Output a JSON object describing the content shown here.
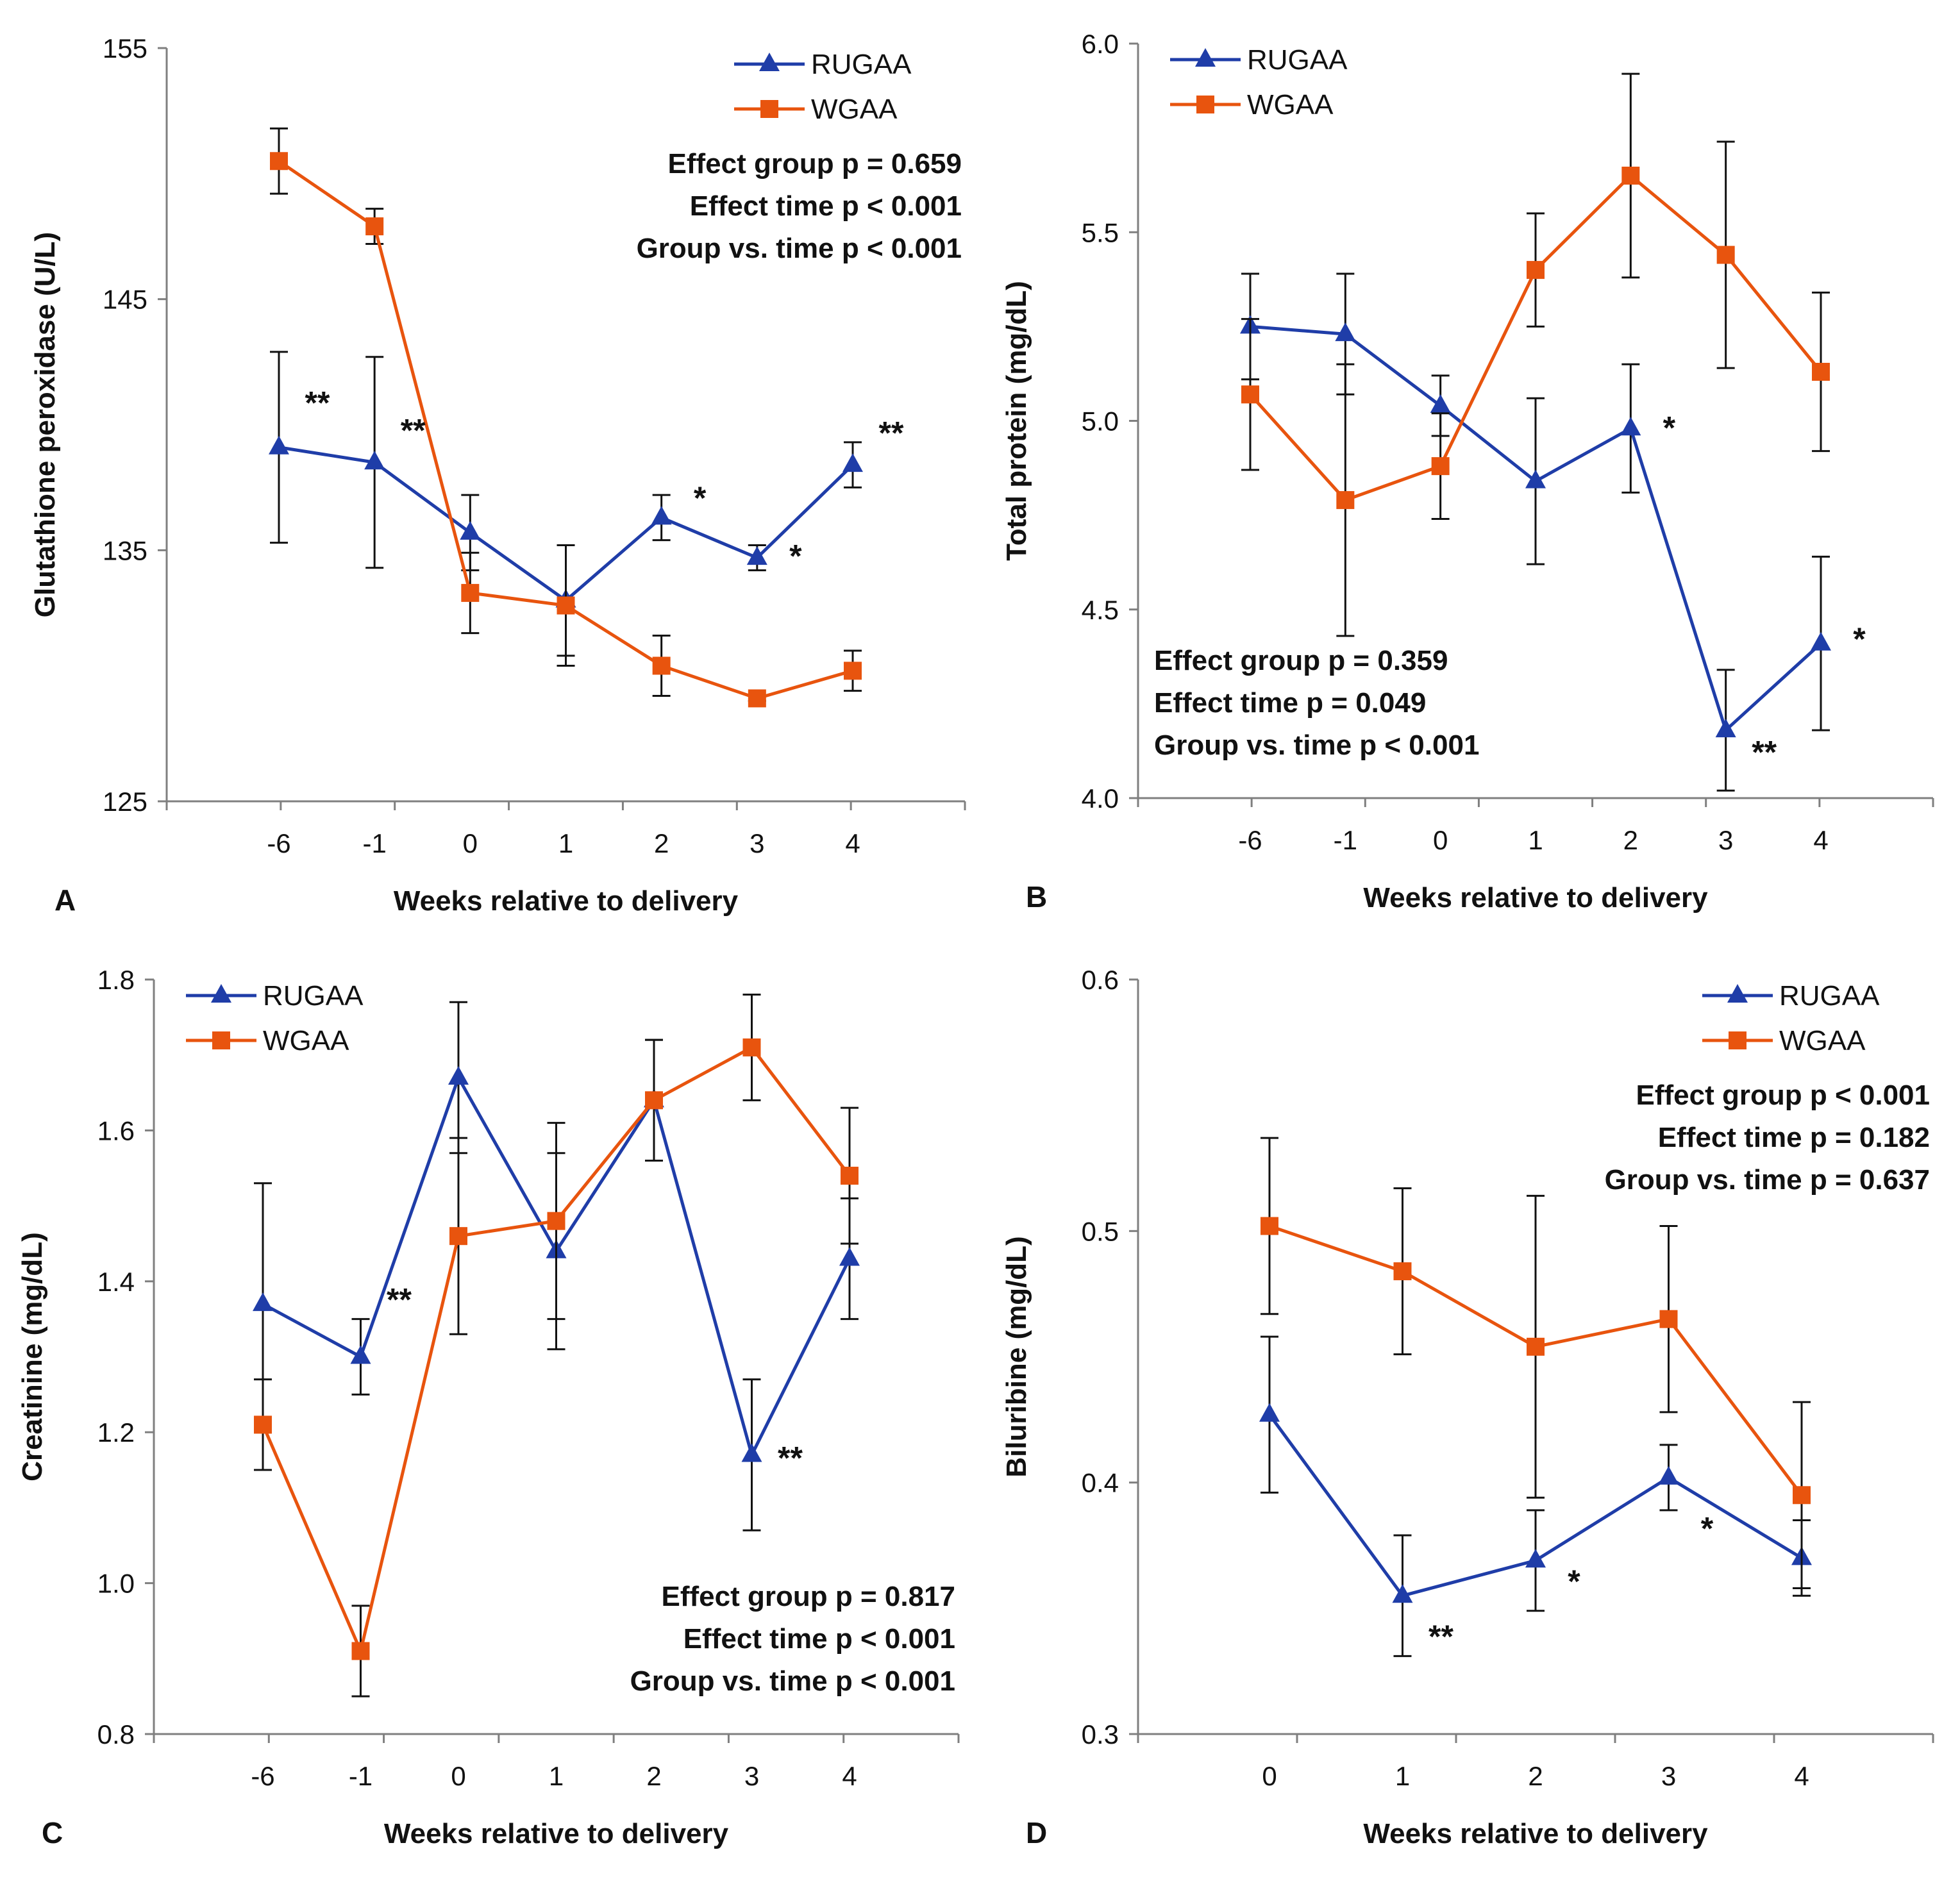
{
  "colors": {
    "rugaa": "#1f3da8",
    "wgaa": "#e8540e",
    "axis": "#7f7f7f",
    "text": "#111111",
    "errorbar": "#111111"
  },
  "chart_data": [
    {
      "panel": "A",
      "type": "line",
      "xlabel": "Weeks relative to delivery",
      "ylabel": "Glutathione peroxidase (U/L)",
      "categories": [
        "-6",
        "-1",
        "0",
        "1",
        "2",
        "3",
        "4"
      ],
      "ylim": [
        125,
        155
      ],
      "yticks": [
        "125",
        "135",
        "145",
        "155"
      ],
      "legend_position": "top-right",
      "series": [
        {
          "name": "RUGAA",
          "marker": "triangle",
          "values": [
            139.1,
            138.5,
            135.7,
            133.0,
            136.3,
            134.7,
            138.4
          ],
          "errors": [
            3.8,
            4.2,
            1.5,
            2.2,
            0.9,
            0.5,
            0.9
          ]
        },
        {
          "name": "WGAA",
          "marker": "square",
          "values": [
            150.5,
            147.9,
            133.3,
            132.8,
            130.4,
            129.1,
            130.2
          ],
          "errors": [
            1.3,
            0.7,
            1.6,
            2.4,
            1.2,
            0.1,
            0.8
          ]
        }
      ],
      "annotations": [
        {
          "text": "**",
          "x": "-6",
          "y": 141.0
        },
        {
          "text": "**",
          "x": "-1",
          "y": 139.9
        },
        {
          "text": "*",
          "x": "2",
          "y": 137.2
        },
        {
          "text": "*",
          "x": "3",
          "y": 134.9
        },
        {
          "text": "**",
          "x": "4",
          "y": 139.8
        }
      ],
      "stats": [
        "Effect group p = 0.659",
        "Effect time p < 0.001",
        "Group vs. time p < 0.001"
      ],
      "stats_position": "top-right"
    },
    {
      "panel": "B",
      "type": "line",
      "xlabel": "Weeks relative to delivery",
      "ylabel": "Total protein (mg/dL)",
      "categories": [
        "-6",
        "-1",
        "0",
        "1",
        "2",
        "3",
        "4"
      ],
      "ylim": [
        4.0,
        6.0
      ],
      "yticks": [
        "4.0",
        "4.5",
        "5.0",
        "5.5",
        "6.0"
      ],
      "legend_position": "top-left",
      "series": [
        {
          "name": "RUGAA",
          "marker": "triangle",
          "values": [
            5.25,
            5.23,
            5.04,
            4.84,
            4.98,
            4.18,
            4.41
          ],
          "errors": [
            0.14,
            0.16,
            0.08,
            0.22,
            0.17,
            0.16,
            0.23
          ]
        },
        {
          "name": "WGAA",
          "marker": "square",
          "values": [
            5.07,
            4.79,
            4.88,
            5.4,
            5.65,
            5.44,
            5.13
          ],
          "errors": [
            0.2,
            0.36,
            0.14,
            0.15,
            0.27,
            0.3,
            0.21
          ]
        }
      ],
      "annotations": [
        {
          "text": "*",
          "x": "2",
          "y": 4.99
        },
        {
          "text": "**",
          "x": "3",
          "y": 4.13
        },
        {
          "text": "*",
          "x": "4",
          "y": 4.43
        }
      ],
      "stats": [
        "Effect group p = 0.359",
        "Effect time p = 0.049",
        "Group vs. time p < 0.001"
      ],
      "stats_position": "bottom-left"
    },
    {
      "panel": "C",
      "type": "line",
      "xlabel": "Weeks relative to delivery",
      "ylabel": "Creatinine (mg/dL)",
      "categories": [
        "-6",
        "-1",
        "0",
        "1",
        "2",
        "3",
        "4"
      ],
      "ylim": [
        0.8,
        1.8
      ],
      "yticks": [
        "0.8",
        "1.0",
        "1.2",
        "1.4",
        "1.6",
        "1.8"
      ],
      "legend_position": "top-left",
      "series": [
        {
          "name": "RUGAA",
          "marker": "triangle",
          "values": [
            1.37,
            1.3,
            1.67,
            1.44,
            1.64,
            1.17,
            1.43
          ],
          "errors": [
            0.16,
            0.05,
            0.1,
            0.13,
            0.08,
            0.1,
            0.08
          ]
        },
        {
          "name": "WGAA",
          "marker": "square",
          "values": [
            1.21,
            0.91,
            1.46,
            1.48,
            1.64,
            1.71,
            1.54
          ],
          "errors": [
            0.06,
            0.06,
            0.13,
            0.13,
            0.08,
            0.07,
            0.09
          ]
        }
      ],
      "annotations": [
        {
          "text": "**",
          "x": "-1",
          "y": 1.38
        },
        {
          "text": "**",
          "x": "3",
          "y": 1.17
        }
      ],
      "stats": [
        "Effect group p = 0.817",
        "Effect time p < 0.001",
        "Group vs. time p < 0.001"
      ],
      "stats_position": "bottom-right"
    },
    {
      "panel": "D",
      "type": "line",
      "xlabel": "Weeks relative to delivery",
      "ylabel": "Biluribine (mg/dL)",
      "categories": [
        "0",
        "1",
        "2",
        "3",
        "4"
      ],
      "ylim": [
        0.3,
        0.6
      ],
      "yticks": [
        "0.3",
        "0.4",
        "0.5",
        "0.6"
      ],
      "legend_position": "top-right",
      "series": [
        {
          "name": "RUGAA",
          "marker": "triangle",
          "values": [
            0.427,
            0.355,
            0.369,
            0.402,
            0.37
          ],
          "errors": [
            0.031,
            0.024,
            0.02,
            0.013,
            0.015
          ]
        },
        {
          "name": "WGAA",
          "marker": "square",
          "values": [
            0.502,
            0.484,
            0.454,
            0.465,
            0.395
          ],
          "errors": [
            0.035,
            0.033,
            0.06,
            0.037,
            0.037
          ]
        }
      ],
      "annotations": [
        {
          "text": "**",
          "x": "1",
          "y": 0.34
        },
        {
          "text": "*",
          "x": "2",
          "y": 0.362
        },
        {
          "text": "*",
          "x": "3",
          "y": 0.383
        }
      ],
      "stats": [
        "Effect group p < 0.001",
        "Effect time p = 0.182",
        "Group vs. time p = 0.637"
      ],
      "stats_position": "top-right"
    }
  ]
}
